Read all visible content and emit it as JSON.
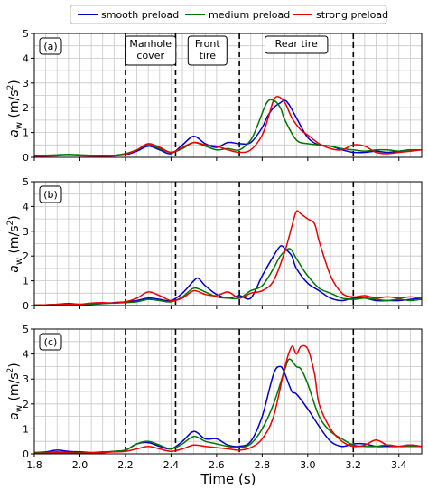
{
  "legend": {
    "placement": "top-center",
    "items": [
      {
        "label": "smooth preload",
        "color": "#0000cc"
      },
      {
        "label": "medium preload",
        "color": "#007700"
      },
      {
        "label": "strong preload",
        "color": "#ee0000"
      }
    ]
  },
  "xlabel": "Time (s)",
  "ylabel": "a",
  "ylabel_sub": "w",
  "ylabel_unit": " (m/s",
  "ylabel_sup": "2",
  "ylabel_close": ")",
  "events": [
    {
      "label": "Manhole cover",
      "lines": [
        "Manhole",
        "cover"
      ]
    },
    {
      "label": "Front tire",
      "lines": [
        "Front",
        "tire"
      ]
    },
    {
      "label": "Rear tire",
      "lines": [
        "Rear tire"
      ]
    }
  ],
  "chart_data": [
    {
      "type": "line",
      "panel": "(a)",
      "xlim": [
        1.8,
        3.5
      ],
      "ylim": [
        0,
        5
      ],
      "grid": true,
      "xticks": [
        "1.8",
        "2.0",
        "2.2",
        "2.4",
        "2.6",
        "2.8",
        "3.0",
        "3.2",
        "3.4"
      ],
      "yticks": [
        "0",
        "1",
        "2",
        "3",
        "4",
        "5"
      ],
      "vlines": [
        2.2,
        2.42,
        2.7,
        3.2
      ],
      "series": [
        {
          "name": "smooth preload",
          "color": "#0000cc",
          "x": [
            1.8,
            1.85,
            1.9,
            1.95,
            2.0,
            2.05,
            2.1,
            2.15,
            2.2,
            2.25,
            2.3,
            2.35,
            2.4,
            2.45,
            2.5,
            2.55,
            2.6,
            2.65,
            2.7,
            2.75,
            2.8,
            2.82,
            2.85,
            2.88,
            2.9,
            2.92,
            2.95,
            3.0,
            3.05,
            3.1,
            3.15,
            3.2,
            3.25,
            3.3,
            3.35,
            3.4,
            3.45,
            3.5
          ],
          "y": [
            0.05,
            0.05,
            0.08,
            0.1,
            0.08,
            0.06,
            0.05,
            0.06,
            0.1,
            0.25,
            0.45,
            0.3,
            0.15,
            0.5,
            0.85,
            0.55,
            0.4,
            0.6,
            0.55,
            0.6,
            1.2,
            1.6,
            2.0,
            2.2,
            2.3,
            2.1,
            1.6,
            0.8,
            0.5,
            0.45,
            0.3,
            0.2,
            0.2,
            0.25,
            0.2,
            0.25,
            0.3,
            0.3
          ]
        },
        {
          "name": "medium preload",
          "color": "#007700",
          "x": [
            1.8,
            1.85,
            1.9,
            1.95,
            2.0,
            2.05,
            2.1,
            2.15,
            2.2,
            2.25,
            2.3,
            2.35,
            2.4,
            2.45,
            2.5,
            2.55,
            2.6,
            2.65,
            2.7,
            2.75,
            2.78,
            2.82,
            2.85,
            2.88,
            2.9,
            2.95,
            3.0,
            3.05,
            3.1,
            3.15,
            3.2,
            3.25,
            3.3,
            3.35,
            3.4,
            3.45,
            3.5
          ],
          "y": [
            0.05,
            0.08,
            0.1,
            0.12,
            0.1,
            0.08,
            0.05,
            0.08,
            0.15,
            0.3,
            0.5,
            0.35,
            0.2,
            0.35,
            0.6,
            0.45,
            0.3,
            0.35,
            0.3,
            0.7,
            1.3,
            2.2,
            2.3,
            2.0,
            1.5,
            0.7,
            0.55,
            0.5,
            0.45,
            0.35,
            0.3,
            0.25,
            0.3,
            0.3,
            0.25,
            0.3,
            0.3
          ]
        },
        {
          "name": "strong preload",
          "color": "#ee0000",
          "x": [
            1.8,
            1.85,
            1.9,
            1.95,
            2.0,
            2.05,
            2.1,
            2.15,
            2.2,
            2.25,
            2.3,
            2.35,
            2.4,
            2.45,
            2.5,
            2.55,
            2.6,
            2.65,
            2.7,
            2.75,
            2.8,
            2.83,
            2.85,
            2.87,
            2.9,
            2.93,
            2.97,
            3.0,
            3.05,
            3.1,
            3.15,
            3.2,
            3.25,
            3.3,
            3.35,
            3.4,
            3.45,
            3.5
          ],
          "y": [
            0.05,
            0.05,
            0.06,
            0.08,
            0.06,
            0.05,
            0.05,
            0.06,
            0.12,
            0.3,
            0.55,
            0.4,
            0.2,
            0.4,
            0.6,
            0.5,
            0.45,
            0.3,
            0.2,
            0.3,
            0.9,
            1.7,
            2.3,
            2.45,
            2.2,
            1.6,
            1.1,
            0.9,
            0.55,
            0.35,
            0.3,
            0.5,
            0.45,
            0.2,
            0.15,
            0.2,
            0.25,
            0.3
          ]
        }
      ]
    },
    {
      "type": "line",
      "panel": "(b)",
      "xlim": [
        1.8,
        3.5
      ],
      "ylim": [
        0,
        5
      ],
      "grid": true,
      "xticks": [
        "1.8",
        "2.0",
        "2.2",
        "2.4",
        "2.6",
        "2.8",
        "3.0",
        "3.2",
        "3.4"
      ],
      "yticks": [
        "0",
        "1",
        "2",
        "3",
        "4",
        "5"
      ],
      "vlines": [
        2.2,
        2.42,
        2.7,
        3.2
      ],
      "series": [
        {
          "name": "smooth preload",
          "color": "#0000cc",
          "x": [
            1.8,
            1.85,
            1.9,
            1.95,
            2.0,
            2.05,
            2.1,
            2.15,
            2.2,
            2.25,
            2.3,
            2.35,
            2.4,
            2.45,
            2.5,
            2.52,
            2.55,
            2.6,
            2.65,
            2.7,
            2.75,
            2.8,
            2.85,
            2.88,
            2.9,
            2.93,
            2.95,
            3.0,
            3.05,
            3.1,
            3.15,
            3.2,
            3.25,
            3.3,
            3.35,
            3.4,
            3.45,
            3.5
          ],
          "y": [
            0.02,
            0.03,
            0.05,
            0.08,
            0.05,
            0.05,
            0.08,
            0.12,
            0.15,
            0.2,
            0.3,
            0.25,
            0.2,
            0.5,
            1.0,
            1.1,
            0.8,
            0.45,
            0.3,
            0.4,
            0.3,
            1.2,
            2.0,
            2.4,
            2.3,
            2.0,
            1.5,
            0.9,
            0.6,
            0.3,
            0.2,
            0.3,
            0.3,
            0.2,
            0.2,
            0.2,
            0.25,
            0.3
          ]
        },
        {
          "name": "medium preload",
          "color": "#007700",
          "x": [
            1.8,
            1.85,
            1.9,
            1.95,
            2.0,
            2.05,
            2.1,
            2.15,
            2.2,
            2.25,
            2.3,
            2.35,
            2.4,
            2.45,
            2.5,
            2.55,
            2.6,
            2.65,
            2.7,
            2.75,
            2.8,
            2.85,
            2.88,
            2.92,
            2.95,
            2.97,
            3.0,
            3.05,
            3.1,
            3.15,
            3.2,
            3.25,
            3.3,
            3.35,
            3.4,
            3.45,
            3.5
          ],
          "y": [
            0.02,
            0.03,
            0.05,
            0.06,
            0.05,
            0.06,
            0.08,
            0.1,
            0.12,
            0.15,
            0.25,
            0.2,
            0.15,
            0.35,
            0.7,
            0.55,
            0.35,
            0.3,
            0.3,
            0.6,
            0.8,
            1.5,
            2.0,
            2.3,
            1.9,
            1.6,
            1.2,
            0.7,
            0.5,
            0.3,
            0.25,
            0.3,
            0.25,
            0.2,
            0.25,
            0.2,
            0.25
          ]
        },
        {
          "name": "strong preload",
          "color": "#ee0000",
          "x": [
            1.8,
            1.85,
            1.9,
            1.95,
            2.0,
            2.05,
            2.1,
            2.15,
            2.2,
            2.25,
            2.3,
            2.35,
            2.4,
            2.45,
            2.5,
            2.55,
            2.6,
            2.65,
            2.7,
            2.75,
            2.8,
            2.85,
            2.9,
            2.93,
            2.95,
            2.97,
            3.0,
            3.03,
            3.05,
            3.1,
            3.15,
            3.2,
            3.25,
            3.3,
            3.35,
            3.4,
            3.45,
            3.5
          ],
          "y": [
            0.02,
            0.03,
            0.04,
            0.05,
            0.05,
            0.1,
            0.12,
            0.1,
            0.15,
            0.3,
            0.55,
            0.4,
            0.2,
            0.3,
            0.6,
            0.45,
            0.4,
            0.55,
            0.3,
            0.5,
            0.6,
            1.0,
            2.2,
            3.2,
            3.8,
            3.7,
            3.5,
            3.3,
            2.6,
            1.2,
            0.5,
            0.35,
            0.4,
            0.3,
            0.35,
            0.3,
            0.35,
            0.3
          ]
        }
      ]
    },
    {
      "type": "line",
      "panel": "(c)",
      "xlim": [
        1.8,
        3.5
      ],
      "ylim": [
        0,
        5
      ],
      "grid": true,
      "xticks": [
        "1.8",
        "2.0",
        "2.2",
        "2.4",
        "2.6",
        "2.8",
        "3.0",
        "3.2",
        "3.4"
      ],
      "yticks": [
        "0",
        "1",
        "2",
        "3",
        "4",
        "5"
      ],
      "vlines": [
        2.2,
        2.42,
        2.7,
        3.2
      ],
      "series": [
        {
          "name": "smooth preload",
          "color": "#0000cc",
          "x": [
            1.8,
            1.85,
            1.9,
            1.95,
            2.0,
            2.05,
            2.1,
            2.15,
            2.2,
            2.25,
            2.3,
            2.35,
            2.4,
            2.45,
            2.5,
            2.55,
            2.6,
            2.65,
            2.7,
            2.75,
            2.8,
            2.85,
            2.88,
            2.9,
            2.93,
            2.95,
            3.0,
            3.05,
            3.1,
            3.15,
            3.2,
            3.25,
            3.3,
            3.35,
            3.4,
            3.45,
            3.5
          ],
          "y": [
            0.05,
            0.08,
            0.15,
            0.1,
            0.08,
            0.05,
            0.05,
            0.1,
            0.15,
            0.4,
            0.45,
            0.3,
            0.2,
            0.5,
            0.9,
            0.6,
            0.6,
            0.35,
            0.3,
            0.5,
            1.5,
            3.2,
            3.5,
            3.2,
            2.5,
            2.4,
            1.8,
            1.1,
            0.5,
            0.3,
            0.4,
            0.4,
            0.3,
            0.3,
            0.3,
            0.35,
            0.3
          ]
        },
        {
          "name": "medium preload",
          "color": "#007700",
          "x": [
            1.8,
            1.85,
            1.9,
            1.95,
            2.0,
            2.05,
            2.1,
            2.15,
            2.2,
            2.25,
            2.3,
            2.35,
            2.4,
            2.45,
            2.5,
            2.55,
            2.6,
            2.65,
            2.7,
            2.75,
            2.8,
            2.85,
            2.9,
            2.92,
            2.95,
            2.97,
            3.0,
            3.05,
            3.1,
            3.15,
            3.2,
            3.25,
            3.3,
            3.35,
            3.4,
            3.45,
            3.5
          ],
          "y": [
            0.05,
            0.06,
            0.08,
            0.06,
            0.05,
            0.05,
            0.08,
            0.1,
            0.15,
            0.4,
            0.5,
            0.35,
            0.2,
            0.4,
            0.7,
            0.5,
            0.4,
            0.3,
            0.25,
            0.4,
            1.0,
            2.0,
            3.4,
            3.8,
            3.5,
            3.4,
            2.8,
            1.5,
            0.9,
            0.6,
            0.35,
            0.3,
            0.3,
            0.35,
            0.3,
            0.3,
            0.3
          ]
        },
        {
          "name": "strong preload",
          "color": "#ee0000",
          "x": [
            1.8,
            1.85,
            1.9,
            1.95,
            2.0,
            2.05,
            2.1,
            2.15,
            2.2,
            2.25,
            2.3,
            2.35,
            2.4,
            2.45,
            2.5,
            2.55,
            2.6,
            2.65,
            2.7,
            2.75,
            2.8,
            2.85,
            2.9,
            2.93,
            2.95,
            2.97,
            3.0,
            3.03,
            3.05,
            3.1,
            3.15,
            3.2,
            3.25,
            3.3,
            3.35,
            3.4,
            3.45,
            3.5
          ],
          "y": [
            0.02,
            0.03,
            0.05,
            0.04,
            0.03,
            0.05,
            0.05,
            0.08,
            0.1,
            0.2,
            0.3,
            0.2,
            0.1,
            0.2,
            0.35,
            0.3,
            0.25,
            0.2,
            0.15,
            0.25,
            0.6,
            1.5,
            3.5,
            4.3,
            4.0,
            4.3,
            4.2,
            3.2,
            2.0,
            1.0,
            0.5,
            0.3,
            0.35,
            0.55,
            0.35,
            0.3,
            0.35,
            0.3
          ]
        }
      ]
    }
  ]
}
